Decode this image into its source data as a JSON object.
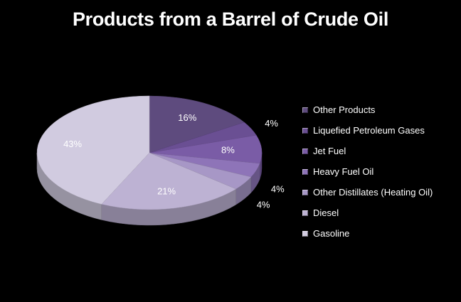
{
  "chart_data": {
    "type": "pie",
    "title": "Products from a Barrel of Crude Oil",
    "legend_position": "right",
    "slices": [
      {
        "name": "Other Products",
        "value": 16,
        "label": "16%",
        "color": "#5e4b7e"
      },
      {
        "name": "Liquefied Petroleum Gases",
        "value": 4,
        "label": "4%",
        "color": "#6a4f93"
      },
      {
        "name": "Jet Fuel",
        "value": 8,
        "label": "8%",
        "color": "#7a5ca6"
      },
      {
        "name": "Heavy Fuel Oil",
        "value": 4,
        "label": "4%",
        "color": "#8e74b8"
      },
      {
        "name": "Other Distillates (Heating Oil)",
        "value": 4,
        "label": "4%",
        "color": "#a797c6"
      },
      {
        "name": "Diesel",
        "value": 21,
        "label": "21%",
        "color": "#bdb2d3"
      },
      {
        "name": "Gasoline",
        "value": 43,
        "label": "43%",
        "color": "#d1cbe0"
      }
    ]
  }
}
